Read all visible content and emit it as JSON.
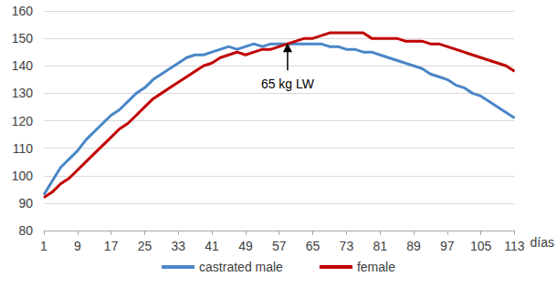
{
  "chart_data": {
    "type": "line",
    "xlabel": "días",
    "x": [
      1,
      3,
      5,
      7,
      9,
      11,
      13,
      15,
      17,
      19,
      21,
      23,
      25,
      27,
      29,
      31,
      33,
      35,
      37,
      39,
      41,
      43,
      45,
      47,
      49,
      51,
      53,
      55,
      57,
      59,
      61,
      63,
      65,
      67,
      69,
      71,
      73,
      75,
      77,
      79,
      81,
      83,
      85,
      87,
      89,
      91,
      93,
      95,
      97,
      99,
      101,
      103,
      105,
      107,
      109,
      111,
      113
    ],
    "series": [
      {
        "name": "castrated male",
        "color": "#4a86c8",
        "values": [
          93,
          98,
          103,
          106,
          109,
          113,
          116,
          119,
          122,
          124,
          127,
          130,
          132,
          135,
          137,
          139,
          141,
          143,
          144,
          144,
          145,
          146,
          147,
          146,
          147,
          148,
          147,
          148,
          148,
          148,
          148,
          148,
          148,
          148,
          147,
          147,
          146,
          146,
          145,
          145,
          144,
          143,
          142,
          141,
          140,
          139,
          137,
          136,
          135,
          133,
          132,
          130,
          129,
          127,
          125,
          123,
          121
        ]
      },
      {
        "name": "female",
        "color": "#c00000",
        "values": [
          92,
          94,
          97,
          99,
          102,
          105,
          108,
          111,
          114,
          117,
          119,
          122,
          125,
          128,
          130,
          132,
          134,
          136,
          138,
          140,
          141,
          143,
          144,
          145,
          144,
          145,
          146,
          146,
          147,
          148,
          149,
          150,
          150,
          151,
          152,
          152,
          152,
          152,
          152,
          150,
          150,
          150,
          150,
          149,
          149,
          149,
          148,
          148,
          147,
          146,
          145,
          144,
          143,
          142,
          141,
          140,
          138
        ]
      }
    ],
    "xlim": [
      1,
      113
    ],
    "xticks": [
      1,
      9,
      17,
      25,
      33,
      41,
      49,
      57,
      65,
      73,
      81,
      89,
      97,
      105,
      113
    ],
    "ylim": [
      80,
      160
    ],
    "yticks": [
      80,
      90,
      100,
      110,
      120,
      130,
      140,
      150,
      160
    ],
    "grid": true,
    "legend": "bottom",
    "annotations": [
      {
        "text": "65 kg LW",
        "x": 59,
        "y": 149
      }
    ]
  }
}
